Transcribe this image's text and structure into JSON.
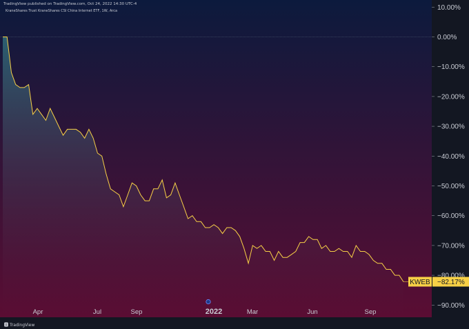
{
  "header": {
    "published": "TradingView published on TradingView.com, Oct 24, 2022 14:30 UTC-4",
    "symbol_line": "KraneShares Trust KraneShares CSI China Internet ETF, 1W, Arca"
  },
  "footer": {
    "logo_text": "TradingView"
  },
  "colors": {
    "line": "#f7d046",
    "badge": "#f7d046",
    "bg_top": "#0c1a3d",
    "bg_bottom": "#5a0d33",
    "fill_top": "#2f6b7a"
  },
  "chart_data": {
    "type": "area",
    "title": "",
    "xlabel": "",
    "ylabel": "",
    "x_tick_labels": [
      "Apr",
      "Jul",
      "Sep",
      "2022",
      "Mar",
      "Jun",
      "Sep"
    ],
    "y_tick_labels": [
      "10.00%",
      "0.00%",
      "−10.00%",
      "−20.00%",
      "−30.00%",
      "−40.00%",
      "−50.00%",
      "−60.00%",
      "−70.00%",
      "−80.00%",
      "−90.00%"
    ],
    "y_tick_values": [
      10,
      0,
      -10,
      -20,
      -30,
      -40,
      -50,
      -60,
      -70,
      -80,
      -90
    ],
    "ylim": [
      -92,
      10
    ],
    "series": [
      {
        "values": [
          0,
          0,
          -12,
          -16,
          -17,
          -17,
          -16,
          -26,
          -24,
          -26,
          -28,
          -24,
          -27,
          -30,
          -33,
          -31,
          -31,
          -31,
          -32,
          -34,
          -31,
          -34,
          -39,
          -40,
          -46,
          -51,
          -52,
          -53,
          -57,
          -53,
          -49,
          -50,
          -53,
          -55,
          -55,
          -51,
          -51,
          -48,
          -54,
          -53,
          -49,
          -53,
          -57,
          -61,
          -60,
          -62,
          -62,
          -64,
          -64,
          -63,
          -64,
          -66,
          -64,
          -64,
          -65,
          -67,
          -71,
          -76,
          -70,
          -71,
          -70,
          -72,
          -72,
          -75,
          -72,
          -74,
          -74,
          -73,
          -72,
          -69,
          -69,
          -67,
          -68,
          -68,
          -71,
          -70,
          -72,
          -72,
          -71,
          -72,
          -72,
          -74,
          -70,
          -72,
          -72,
          -73,
          -75,
          -76,
          -76,
          -78,
          -78,
          -80,
          -80,
          -82.17
        ]
      }
    ],
    "last_value_label": {
      "ticker": "KWEB",
      "value": "−82.17%"
    },
    "event_markers": [
      {
        "label": ""
      }
    ]
  }
}
